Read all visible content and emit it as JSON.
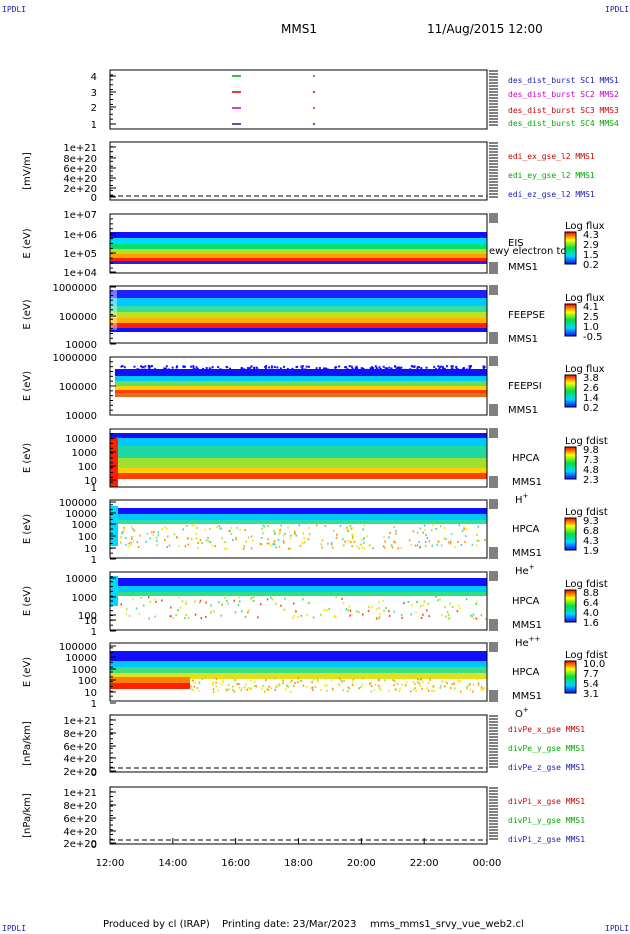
{
  "header": {
    "corner_label": "IPDLI",
    "mission": "MMS1",
    "datetime": "11/Aug/2015 12:00"
  },
  "footer": {
    "produced_by": "Produced by cl (IRAP)",
    "printing_date": "Printing date: 23/Mar/2023",
    "script": "mms_mms1_srvy_vue_web2.cl"
  },
  "colors": {
    "mms1": "#1a1ab0",
    "mms2": "#cc00cc",
    "mms3": "#cc0000",
    "mms4": "#00aa00",
    "red": "#cc0000",
    "green": "#00aa00",
    "blue": "#1a1ab0"
  },
  "chart_data": [
    {
      "type": "line",
      "name": "burst",
      "yticks": [
        "4",
        "3",
        "2",
        "1"
      ],
      "ylim": [
        0.5,
        4.5
      ],
      "series": [
        {
          "name": "des_dist_burst SC1 MMS1",
          "color": "mms1",
          "y": 1
        },
        {
          "name": "des_dist_burst SC2 MMS2",
          "color": "mms2",
          "y": 2
        },
        {
          "name": "des_dist_burst SC3 MMS3",
          "color": "mms3",
          "y": 3
        },
        {
          "name": "des_dist_burst SC4 MMS4",
          "color": "mms4",
          "y": 4
        }
      ]
    },
    {
      "type": "line",
      "name": "efield",
      "ylabel": "[mV/m]",
      "yticks": [
        "1e+21",
        "8e+20",
        "6e+20",
        "4e+20",
        "2e+20",
        "0"
      ],
      "ylim": [
        0,
        1e+21
      ],
      "series": [
        {
          "name": "edi_ex_gse_l2 MMS1",
          "color": "red"
        },
        {
          "name": "edi_ey_gse_l2 MMS1",
          "color": "green"
        },
        {
          "name": "edi_ez_gse_l2 MMS1",
          "color": "blue"
        }
      ]
    },
    {
      "type": "heatmap",
      "name": "eis",
      "ylabel": "E (eV)",
      "yticks": [
        "1e+07",
        "1e+06",
        "1e+05",
        "1e+04"
      ],
      "ylim": [
        10000.0,
        10000000.0
      ],
      "right_labels": [
        "EIS",
        "MMS1"
      ],
      "overlap_label": "ewy electron to",
      "colorbar_title": "Log flux",
      "colorbar_ticks": [
        "4.3",
        "2.9",
        "1.5",
        "0.2"
      ]
    },
    {
      "type": "heatmap",
      "name": "feepse",
      "ylabel": "E (eV)",
      "yticks": [
        "1000000",
        "100000",
        "10000"
      ],
      "ylim": [
        10000.0,
        1000000.0
      ],
      "right_labels": [
        "FEEPSE",
        "MMS1"
      ],
      "colorbar_title": "Log flux",
      "colorbar_ticks": [
        "4.1",
        "2.5",
        "1.0",
        "-0.5"
      ]
    },
    {
      "type": "heatmap",
      "name": "feepsi",
      "ylabel": "E (eV)",
      "yticks": [
        "1000000",
        "100000",
        "10000"
      ],
      "ylim": [
        10000.0,
        1000000.0
      ],
      "right_labels": [
        "FEEPSI",
        "MMS1"
      ],
      "colorbar_title": "Log flux",
      "colorbar_ticks": [
        "3.8",
        "2.6",
        "1.4",
        "0.2"
      ]
    },
    {
      "type": "heatmap",
      "name": "hpca_h",
      "ylabel": "E (eV)",
      "yticks": [
        "10000",
        "1000",
        "100",
        "10",
        "1"
      ],
      "ylim": [
        1,
        40000
      ],
      "right_labels": [
        "HPCA",
        "MMS1"
      ],
      "species": "H",
      "species_sup": "+",
      "colorbar_title": "Log fdist",
      "colorbar_ticks": [
        "9.8",
        "7.3",
        "4.8",
        "2.3"
      ]
    },
    {
      "type": "heatmap",
      "name": "hpca_he",
      "ylabel": "E (eV)",
      "yticks": [
        "100000",
        "10000",
        "1000",
        "100",
        "10",
        "1"
      ],
      "ylim": [
        1,
        100000
      ],
      "right_labels": [
        "HPCA",
        "MMS1"
      ],
      "species": "He",
      "species_sup": "+",
      "colorbar_title": "Log fdist",
      "colorbar_ticks": [
        "9.3",
        "6.8",
        "4.3",
        "1.9"
      ]
    },
    {
      "type": "heatmap",
      "name": "hpca_he2",
      "ylabel": "E (eV)",
      "yticks": [
        "10000",
        "1000",
        "100",
        "10",
        "1"
      ],
      "ylim": [
        1,
        40000
      ],
      "right_labels": [
        "HPCA",
        "MMS1"
      ],
      "species": "He",
      "species_sup": "++",
      "colorbar_title": "Log fdist",
      "colorbar_ticks": [
        "8.8",
        "6.4",
        "4.0",
        "1.6"
      ]
    },
    {
      "type": "heatmap",
      "name": "hpca_o",
      "ylabel": "E (eV)",
      "yticks": [
        "100000",
        "10000",
        "1000",
        "100",
        "10",
        "1"
      ],
      "ylim": [
        1,
        100000
      ],
      "right_labels": [
        "HPCA",
        "MMS1"
      ],
      "species": "O",
      "species_sup": "+",
      "colorbar_title": "Log fdist",
      "colorbar_ticks": [
        "10.0",
        "7.7",
        "5.4",
        "3.1"
      ]
    },
    {
      "type": "line",
      "name": "divpe",
      "ylabel": "[nPa/km]",
      "yticks": [
        "1e+21",
        "8e+20",
        "6e+20",
        "4e+20",
        "2e+20",
        "0"
      ],
      "ylim": [
        0,
        1e+21
      ],
      "series": [
        {
          "name": "divPe_x_gse MMS1",
          "color": "red"
        },
        {
          "name": "divPe_y_gse MMS1",
          "color": "green"
        },
        {
          "name": "divPe_z_gse MMS1",
          "color": "blue"
        }
      ]
    },
    {
      "type": "line",
      "name": "divpi",
      "ylabel": "[nPa/km]",
      "yticks": [
        "1e+21",
        "8e+20",
        "6e+20",
        "4e+20",
        "2e+20",
        "0"
      ],
      "ylim": [
        0,
        1e+21
      ],
      "series": [
        {
          "name": "divPi_x_gse MMS1",
          "color": "red"
        },
        {
          "name": "divPi_y_gse MMS1",
          "color": "green"
        },
        {
          "name": "divPi_z_gse MMS1",
          "color": "blue"
        }
      ]
    }
  ],
  "time_axis": {
    "ticks": [
      "12:00",
      "14:00",
      "16:00",
      "18:00",
      "20:00",
      "22:00",
      "00:00"
    ]
  }
}
